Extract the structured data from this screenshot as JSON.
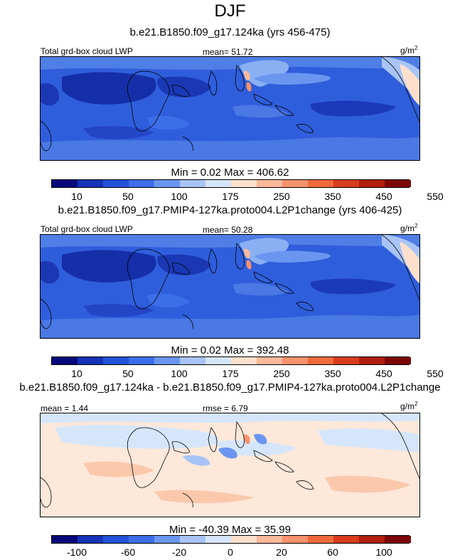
{
  "figure": {
    "season": "DJF",
    "unit_prefix": "g/m",
    "unit_exp": "2"
  },
  "panels": [
    {
      "case": "b.e21.B1850.f09_g17.124ka (yrs 456-475)",
      "variable": "Total grd-box cloud LWP",
      "stat": "mean=  51.72",
      "minmax": "Min =    0.02 Max = 406.62"
    },
    {
      "case": "b.e21.B1850.f09_g17.PMIP4-127ka.proto004.L2P1change (yrs 406-425)",
      "variable": "Total grd-box cloud LWP",
      "stat": "mean=  50.28",
      "minmax": "Min =    0.02 Max = 392.48"
    },
    {
      "case": "b.e21.B1850.f09_g17.124ka - b.e21.B1850.f09_g17.PMIP4-127ka.proto004.L2P1change",
      "stat": "mean =   1.44",
      "rmse": "rmse =   6.79",
      "minmax": "Min = -40.39 Max =  35.99"
    }
  ],
  "chart_data": [
    {
      "type": "heatmap",
      "title": "b.e21.B1850.f09_g17.124ka (yrs 456-475)",
      "variable": "Total grd-box cloud LWP",
      "units": "g/m2",
      "mean": 51.72,
      "min": 0.02,
      "max": 406.62,
      "colorbar_labels": [
        "10",
        "50",
        "100",
        "175",
        "250",
        "350",
        "450",
        "550"
      ],
      "colors": [
        "#08087a",
        "#1632b6",
        "#2452d8",
        "#3c6ee8",
        "#6a96f0",
        "#a8c4f6",
        "#d6e6fa",
        "#fde0cc",
        "#fbb89a",
        "#f7926c",
        "#ef6a3c",
        "#d83c1c",
        "#b01e0e",
        "#7c0606"
      ]
    },
    {
      "type": "heatmap",
      "title": "b.e21.B1850.f09_g17.PMIP4-127ka.proto004.L2P1change (yrs 406-425)",
      "variable": "Total grd-box cloud LWP",
      "units": "g/m2",
      "mean": 50.28,
      "min": 0.02,
      "max": 392.48,
      "colorbar_labels": [
        "10",
        "50",
        "100",
        "175",
        "250",
        "350",
        "450",
        "550"
      ],
      "colors": [
        "#08087a",
        "#1632b6",
        "#2452d8",
        "#3c6ee8",
        "#6a96f0",
        "#a8c4f6",
        "#d6e6fa",
        "#fde0cc",
        "#fbb89a",
        "#f7926c",
        "#ef6a3c",
        "#d83c1c",
        "#b01e0e",
        "#7c0606"
      ]
    },
    {
      "type": "heatmap",
      "title": "b.e21.B1850.f09_g17.124ka - b.e21.B1850.f09_g17.PMIP4-127ka.proto004.L2P1change",
      "units": "g/m2",
      "mean": 1.44,
      "rmse": 6.79,
      "min": -40.39,
      "max": 35.99,
      "colorbar_labels": [
        "-100",
        "-60",
        "-20",
        "0",
        "20",
        "60",
        "100"
      ],
      "colors": [
        "#08087a",
        "#1632b6",
        "#2452d8",
        "#3c6ee8",
        "#6a96f0",
        "#a8c4f6",
        "#d6e6fa",
        "#fde0cc",
        "#fbb89a",
        "#f7926c",
        "#ef6a3c",
        "#d83c1c",
        "#b01e0e",
        "#7c0606"
      ]
    }
  ]
}
